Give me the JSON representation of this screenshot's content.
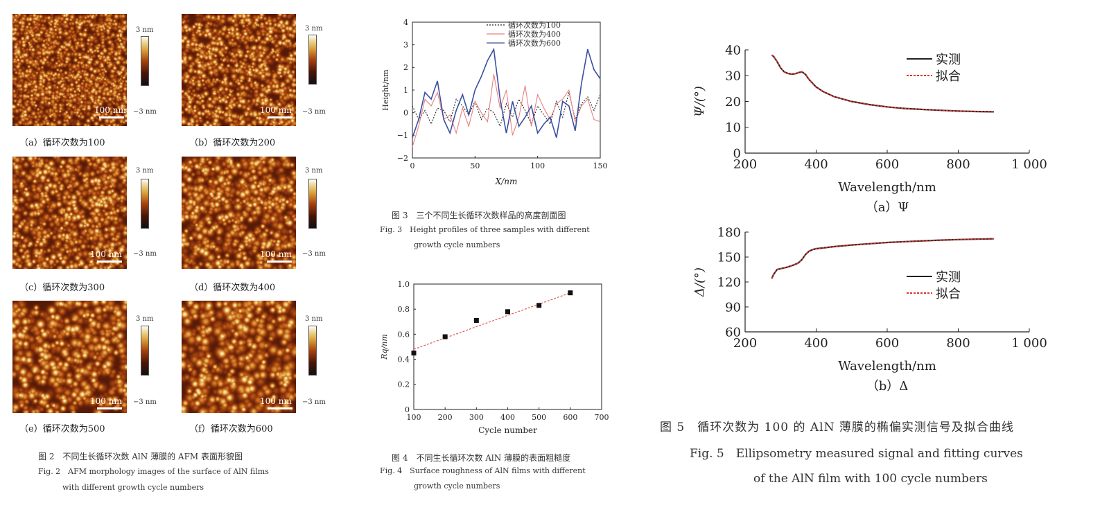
{
  "fig2": {
    "panels": [
      {
        "label": "（a）循环次数为100",
        "scale": "100 nm",
        "seed": 1
      },
      {
        "label": "（b）循环次数为200",
        "scale": "100 nm",
        "seed": 2
      },
      {
        "label": "（c）循环次数为300",
        "scale": "100 nm",
        "seed": 3
      },
      {
        "label": "（d）循环次数为400",
        "scale": "100 nm",
        "seed": 4
      },
      {
        "label": "（e）循环次数为500",
        "scale": "100 nm",
        "seed": 5
      },
      {
        "label": "（f）循环次数为600",
        "scale": "100 nm",
        "seed": 6
      }
    ],
    "cb_top": "3 nm",
    "cb_bottom": "−3 nm",
    "caption_cn": "图 2　不同生长循环次数 AlN 薄膜的 AFM 表面形貌图",
    "caption_en_1": "Fig. 2　AFM morphology images of the surface of AlN films",
    "caption_en_2": "with different growth cycle numbers"
  },
  "fig3": {
    "caption_cn": "图 3　三个不同生长循环次数样品的高度剖面图",
    "caption_en_1": "Fig. 3　Height profiles of three samples with different",
    "caption_en_2": "growth cycle numbers"
  },
  "fig4": {
    "caption_cn": "图 4　不同生长循环次数 AlN 薄膜的表面粗糙度",
    "caption_en_1": "Fig. 4　Surface roughness of AlN films with different",
    "caption_en_2": "growth cycle numbers"
  },
  "fig5": {
    "caption_cn": "图 5　循环次数为 100 的 AlN 薄膜的椭偏实测信号及拟合曲线",
    "caption_en_1": "Fig. 5　Ellipsometry measured signal and fitting curves",
    "caption_en_2": "of the AlN film with 100 cycle numbers"
  },
  "chart_data": [
    {
      "id": "fig3",
      "type": "line",
      "xlabel": "X/nm",
      "ylabel": "Height/nm",
      "xlim": [
        0,
        150
      ],
      "ylim": [
        -2,
        4
      ],
      "xticks": [
        "0",
        "50",
        "100",
        "150"
      ],
      "yticks": [
        "−2",
        "−1",
        "0",
        "1",
        "2",
        "3",
        "4"
      ],
      "x": [
        0,
        5,
        10,
        15,
        20,
        25,
        30,
        35,
        40,
        45,
        50,
        55,
        60,
        65,
        70,
        75,
        80,
        85,
        90,
        95,
        100,
        105,
        110,
        115,
        120,
        125,
        130,
        135,
        140,
        145,
        150
      ],
      "series": [
        {
          "name": "循环次数为100",
          "color": "#222222",
          "dash": "2,2",
          "values": [
            0.3,
            -0.3,
            0.1,
            -0.5,
            0.2,
            0.1,
            -0.4,
            0.6,
            0.3,
            -0.1,
            0.5,
            -0.3,
            0.2,
            0.0,
            -0.6,
            0.4,
            -0.2,
            0.6,
            0.1,
            -0.5,
            0.3,
            -0.1,
            -0.5,
            0.5,
            -0.2,
            0.9,
            -0.3,
            0.4,
            0.7,
            0.1,
            0.8
          ]
        },
        {
          "name": "循环次数为400",
          "color": "#e88080",
          "dash": "",
          "values": [
            -1.5,
            -0.6,
            0.6,
            0.3,
            0.9,
            -0.3,
            -0.1,
            -0.9,
            0.2,
            -0.6,
            0.5,
            0.0,
            -0.4,
            1.7,
            0.2,
            1.0,
            -1.0,
            -0.2,
            1.2,
            -0.6,
            0.8,
            0.2,
            -0.3,
            0.4,
            0.6,
            1.0,
            -0.4,
            0.3,
            0.6,
            -0.3,
            -0.4
          ]
        },
        {
          "name": "循环次数为600",
          "color": "#3a4fa0",
          "dash": "",
          "values": [
            -1.1,
            -0.3,
            0.9,
            0.6,
            1.4,
            -0.3,
            -0.9,
            0.1,
            0.8,
            -0.1,
            1.0,
            1.6,
            2.3,
            2.8,
            0.6,
            -0.9,
            0.5,
            -0.6,
            -0.2,
            0.3,
            -0.9,
            -0.5,
            -0.2,
            -1.1,
            0.5,
            0.3,
            -0.8,
            1.3,
            2.8,
            1.9,
            1.5
          ]
        }
      ]
    },
    {
      "id": "fig4",
      "type": "scatter",
      "xlabel": "Cycle number",
      "ylabel": "Rq/nm",
      "xlim": [
        100,
        700
      ],
      "ylim": [
        0,
        1.0
      ],
      "xticks": [
        "100",
        "200",
        "300",
        "400",
        "500",
        "600",
        "700"
      ],
      "yticks": [
        "0",
        "0.2",
        "0.4",
        "0.6",
        "0.8",
        "1.0"
      ],
      "x": [
        100,
        200,
        300,
        400,
        500,
        600
      ],
      "values": [
        0.45,
        0.58,
        0.71,
        0.78,
        0.83,
        0.93
      ],
      "fit_line": {
        "x": [
          100,
          600
        ],
        "y": [
          0.48,
          0.93
        ],
        "color": "#e05a4a"
      }
    },
    {
      "id": "fig5a",
      "type": "line",
      "panel_label": "（a）Ψ",
      "xlabel": "Wavelength/nm",
      "ylabel": "Ψ/(°)",
      "xlim": [
        200,
        1000
      ],
      "ylim": [
        0,
        40
      ],
      "xticks": [
        "200",
        "400",
        "600",
        "800",
        "1 000"
      ],
      "yticks": [
        "0",
        "10",
        "20",
        "30",
        "40"
      ],
      "x": [
        275,
        280,
        290,
        300,
        310,
        320,
        330,
        340,
        350,
        360,
        370,
        380,
        400,
        420,
        450,
        500,
        550,
        600,
        650,
        700,
        750,
        800,
        850,
        900
      ],
      "series": [
        {
          "name": "实测",
          "color": "#222222",
          "dash": "",
          "values": [
            38,
            37.5,
            35.5,
            33,
            31.5,
            30.9,
            30.6,
            30.7,
            31.2,
            31.5,
            30.5,
            28.5,
            25.6,
            23.8,
            21.9,
            20.0,
            18.8,
            17.9,
            17.3,
            16.9,
            16.6,
            16.3,
            16.1,
            16.0
          ]
        },
        {
          "name": "拟合",
          "color": "#e03030",
          "dash": "3,2",
          "values": [
            38,
            37.5,
            35.5,
            33,
            31.5,
            30.9,
            30.6,
            30.7,
            31.2,
            31.5,
            30.5,
            28.5,
            25.6,
            23.8,
            21.9,
            20.0,
            18.8,
            17.9,
            17.3,
            16.9,
            16.6,
            16.3,
            16.1,
            16.0
          ]
        }
      ]
    },
    {
      "id": "fig5b",
      "type": "line",
      "panel_label": "（b）Δ",
      "xlabel": "Wavelength/nm",
      "ylabel": "Δ/(°)",
      "xlim": [
        200,
        1000
      ],
      "ylim": [
        60,
        180
      ],
      "xticks": [
        "200",
        "400",
        "600",
        "800",
        "1 000"
      ],
      "yticks": [
        "60",
        "90",
        "120",
        "150",
        "180"
      ],
      "x": [
        275,
        280,
        290,
        300,
        320,
        340,
        350,
        360,
        370,
        380,
        390,
        400,
        450,
        500,
        550,
        600,
        650,
        700,
        750,
        800,
        850,
        900
      ],
      "series": [
        {
          "name": "实测",
          "color": "#222222",
          "dash": "",
          "values": [
            124,
            129,
            135,
            136,
            138,
            141,
            143,
            147,
            153,
            157,
            159,
            160,
            162.5,
            164.5,
            166,
            167.5,
            168.5,
            169.5,
            170.3,
            171,
            171.5,
            172
          ]
        },
        {
          "name": "拟合",
          "color": "#e03030",
          "dash": "3,2",
          "values": [
            124,
            129,
            135,
            136,
            138,
            141,
            143,
            147,
            153,
            157,
            159,
            160,
            162.5,
            164.5,
            166,
            167.5,
            168.5,
            169.5,
            170.3,
            171,
            171.5,
            172
          ]
        }
      ]
    }
  ]
}
